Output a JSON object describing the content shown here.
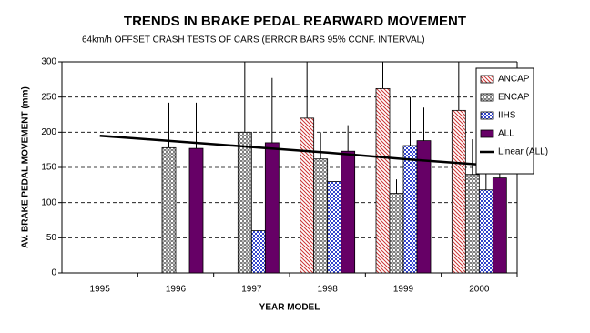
{
  "chart_data": {
    "type": "bar",
    "title": "TRENDS IN BRAKE PEDAL REARWARD MOVEMENT",
    "subtitle": "64km/h OFFSET CRASH TESTS OF CARS (ERROR BARS 95% CONF. INTERVAL)",
    "x_label": "YEAR MODEL",
    "y_label": "AV. BRAKE PEDAL MOVEMENT (mm)",
    "categories": [
      "1995",
      "1996",
      "1997",
      "1998",
      "1999",
      "2000"
    ],
    "series": [
      {
        "name": "ANCAP",
        "color": "#cc3333",
        "pattern": "diagonal",
        "values": [
          null,
          null,
          null,
          220,
          262,
          231
        ],
        "errors": [
          null,
          null,
          null,
          100,
          80,
          80
        ]
      },
      {
        "name": "ENCAP",
        "color": "#808080",
        "pattern": "dots",
        "values": [
          null,
          178,
          200,
          162,
          113,
          140
        ],
        "errors": [
          null,
          64,
          110,
          38,
          20,
          50
        ]
      },
      {
        "name": "IIHS",
        "color": "#3344cc",
        "pattern": "checker",
        "values": [
          null,
          null,
          60,
          130,
          181,
          118
        ],
        "errors": [
          null,
          null,
          null,
          null,
          69,
          31
        ]
      },
      {
        "name": "ALL",
        "color": "#660066",
        "pattern": "solid",
        "values": [
          null,
          177,
          185,
          173,
          188,
          135
        ],
        "errors": [
          null,
          65,
          92,
          37,
          47,
          25
        ]
      },
      {
        "name": "Linear (ALL)",
        "color": "#000000",
        "type": "line",
        "values": [
          195,
          187,
          179,
          171,
          162,
          154
        ]
      }
    ],
    "ylim": [
      0,
      300
    ],
    "yticks": [
      0,
      50,
      100,
      150,
      200,
      250,
      300
    ],
    "grid": true,
    "legend": "right"
  }
}
